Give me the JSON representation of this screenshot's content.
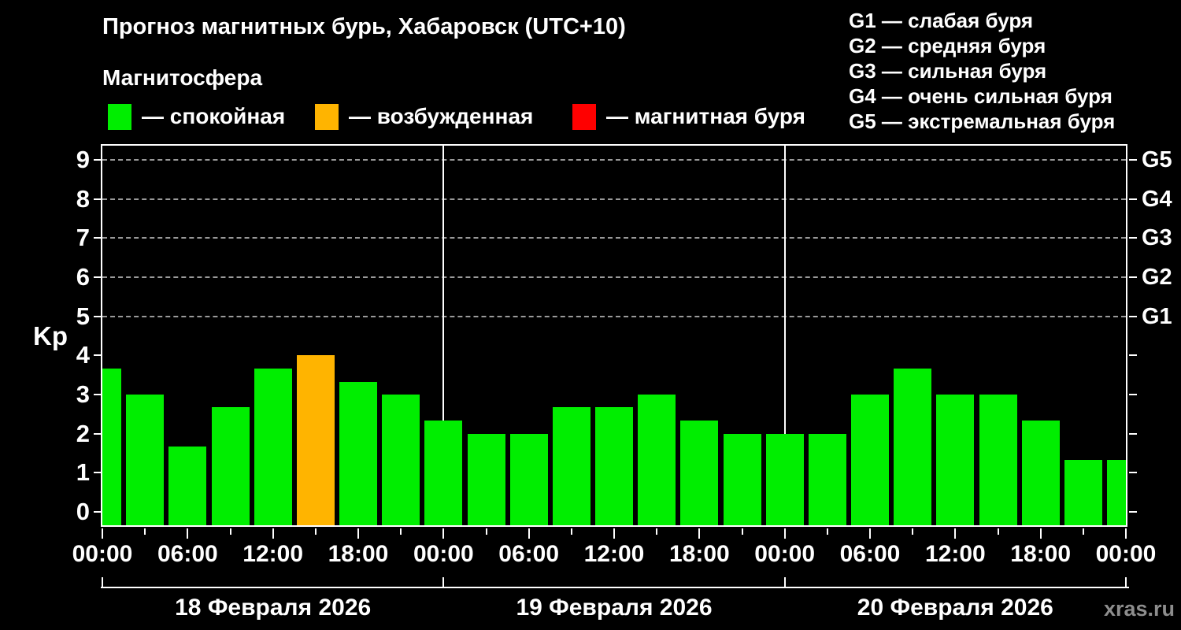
{
  "header": {
    "title": "Прогноз магнитных бурь, Хабаровск (UTC+10)",
    "subtitle": "Магнитосфера",
    "legend": [
      {
        "label": "— спокойная",
        "state": "quiet"
      },
      {
        "label": "— возбужденная",
        "state": "active"
      },
      {
        "label": "— магнитная буря",
        "state": "storm"
      }
    ],
    "g_scale_legend": [
      "G1 — слабая буря",
      "G2 — средняя буря",
      "G3 — сильная буря",
      "G4 — очень сильная буря",
      "G5 — экстремальная буря"
    ]
  },
  "colors": {
    "quiet": "#00ee00",
    "active": "#ffb400",
    "storm": "#ff0000",
    "grid": "#9a9a9a",
    "frame": "#ffffff",
    "text": "#ffffff",
    "watermark": "#8d8d8d",
    "background": "#000000"
  },
  "watermark": "xras.ru",
  "chart_data": {
    "type": "bar",
    "ylabel": "Kp",
    "ylim": [
      0,
      9
    ],
    "y_ticks": [
      0,
      1,
      2,
      3,
      4,
      5,
      6,
      7,
      8,
      9
    ],
    "grid_levels": [
      5,
      6,
      7,
      8,
      9
    ],
    "right_axis_labels": [
      {
        "kp": 5,
        "label": "G1"
      },
      {
        "kp": 6,
        "label": "G2"
      },
      {
        "kp": 7,
        "label": "G3"
      },
      {
        "kp": 8,
        "label": "G4"
      },
      {
        "kp": 9,
        "label": "G5"
      }
    ],
    "x_tick_labels_6h": [
      "00:00",
      "06:00",
      "12:00",
      "18:00",
      "00:00",
      "06:00",
      "12:00",
      "18:00",
      "00:00",
      "06:00",
      "12:00",
      "18:00",
      "00:00"
    ],
    "days": [
      "18 Февраля 2026",
      "19 Февраля 2026",
      "20 Февраля 2026"
    ],
    "bars": [
      {
        "day": 0,
        "time": "00:00",
        "kp": 3.67,
        "state": "quiet"
      },
      {
        "day": 0,
        "time": "03:00",
        "kp": 3,
        "state": "quiet"
      },
      {
        "day": 0,
        "time": "06:00",
        "kp": 1.67,
        "state": "quiet"
      },
      {
        "day": 0,
        "time": "09:00",
        "kp": 2.67,
        "state": "quiet"
      },
      {
        "day": 0,
        "time": "12:00",
        "kp": 3.67,
        "state": "quiet"
      },
      {
        "day": 0,
        "time": "15:00",
        "kp": 4,
        "state": "active"
      },
      {
        "day": 0,
        "time": "18:00",
        "kp": 3.33,
        "state": "quiet"
      },
      {
        "day": 0,
        "time": "21:00",
        "kp": 3,
        "state": "quiet"
      },
      {
        "day": 1,
        "time": "00:00",
        "kp": 2.33,
        "state": "quiet"
      },
      {
        "day": 1,
        "time": "03:00",
        "kp": 2,
        "state": "quiet"
      },
      {
        "day": 1,
        "time": "06:00",
        "kp": 2,
        "state": "quiet"
      },
      {
        "day": 1,
        "time": "09:00",
        "kp": 2.67,
        "state": "quiet"
      },
      {
        "day": 1,
        "time": "12:00",
        "kp": 2.67,
        "state": "quiet"
      },
      {
        "day": 1,
        "time": "15:00",
        "kp": 3,
        "state": "quiet"
      },
      {
        "day": 1,
        "time": "18:00",
        "kp": 2.33,
        "state": "quiet"
      },
      {
        "day": 1,
        "time": "21:00",
        "kp": 2,
        "state": "quiet"
      },
      {
        "day": 2,
        "time": "00:00",
        "kp": 2,
        "state": "quiet"
      },
      {
        "day": 2,
        "time": "03:00",
        "kp": 2,
        "state": "quiet"
      },
      {
        "day": 2,
        "time": "06:00",
        "kp": 3,
        "state": "quiet"
      },
      {
        "day": 2,
        "time": "09:00",
        "kp": 3.67,
        "state": "quiet"
      },
      {
        "day": 2,
        "time": "12:00",
        "kp": 3,
        "state": "quiet"
      },
      {
        "day": 2,
        "time": "15:00",
        "kp": 3,
        "state": "quiet"
      },
      {
        "day": 2,
        "time": "18:00",
        "kp": 2.33,
        "state": "quiet"
      },
      {
        "day": 2,
        "time": "21:00",
        "kp": 1.33,
        "state": "quiet"
      },
      {
        "day": 3,
        "time": "00:00",
        "kp": 1.33,
        "state": "quiet"
      }
    ]
  }
}
